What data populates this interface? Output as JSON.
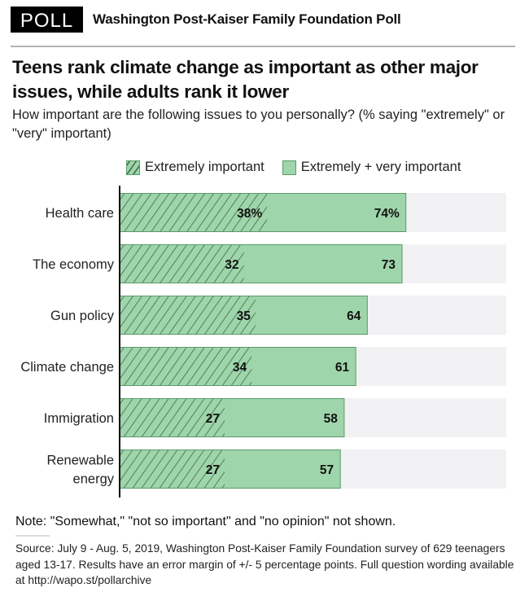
{
  "header": {
    "badge": "POLL",
    "brand": "Washington Post-Kaiser Family Foundation Poll"
  },
  "title": "Teens rank climate change as important as other major issues, while adults rank it lower",
  "subtitle": "How important are the following issues to you personally? (% saying \"extremely\" or \"very\" important)",
  "legend": {
    "extremely": "Extremely important",
    "combined": "Extremely + very important"
  },
  "colors": {
    "bar": "#9fd5ab",
    "bar_border": "#5a9a6a",
    "hatch": "#3b6b45",
    "track": "#f2f2f4",
    "axis": "#111111"
  },
  "chart_data": {
    "type": "bar",
    "orientation": "horizontal",
    "title": "Teens rank climate change as important as other major issues, while adults rank it lower",
    "xlabel": "",
    "ylabel": "",
    "xlim": [
      0,
      100
    ],
    "grid": false,
    "legend_position": "top",
    "categories": [
      "Health care",
      "The economy",
      "Gun policy",
      "Climate change",
      "Immigration",
      "Renewable energy"
    ],
    "series": [
      {
        "name": "Extremely important",
        "style": "hatched",
        "values": [
          38,
          32,
          35,
          34,
          27,
          27
        ]
      },
      {
        "name": "Extremely + very important",
        "style": "solid",
        "values": [
          74,
          73,
          64,
          61,
          58,
          57
        ]
      }
    ],
    "value_labels_extremely": [
      "38%",
      "32",
      "35",
      "34",
      "27",
      "27"
    ],
    "value_labels_combined": [
      "74%",
      "73",
      "64",
      "61",
      "58",
      "57"
    ],
    "category_label_lines": [
      [
        "Health care"
      ],
      [
        "The economy"
      ],
      [
        "Gun policy"
      ],
      [
        "Climate change"
      ],
      [
        "Immigration"
      ],
      [
        "Renewable",
        "energy"
      ]
    ]
  },
  "footer": {
    "note": "Note: \"Somewhat,\" \"not so important\" and \"no opinion\" not shown.",
    "source": "Source: July 9 - Aug. 5, 2019, Washington Post-Kaiser Family Foundation survey of 629 teenagers aged 13-17. Results have an error margin of +/- 5 percentage points. Full question wording available at http://wapo.st/pollarchive"
  }
}
